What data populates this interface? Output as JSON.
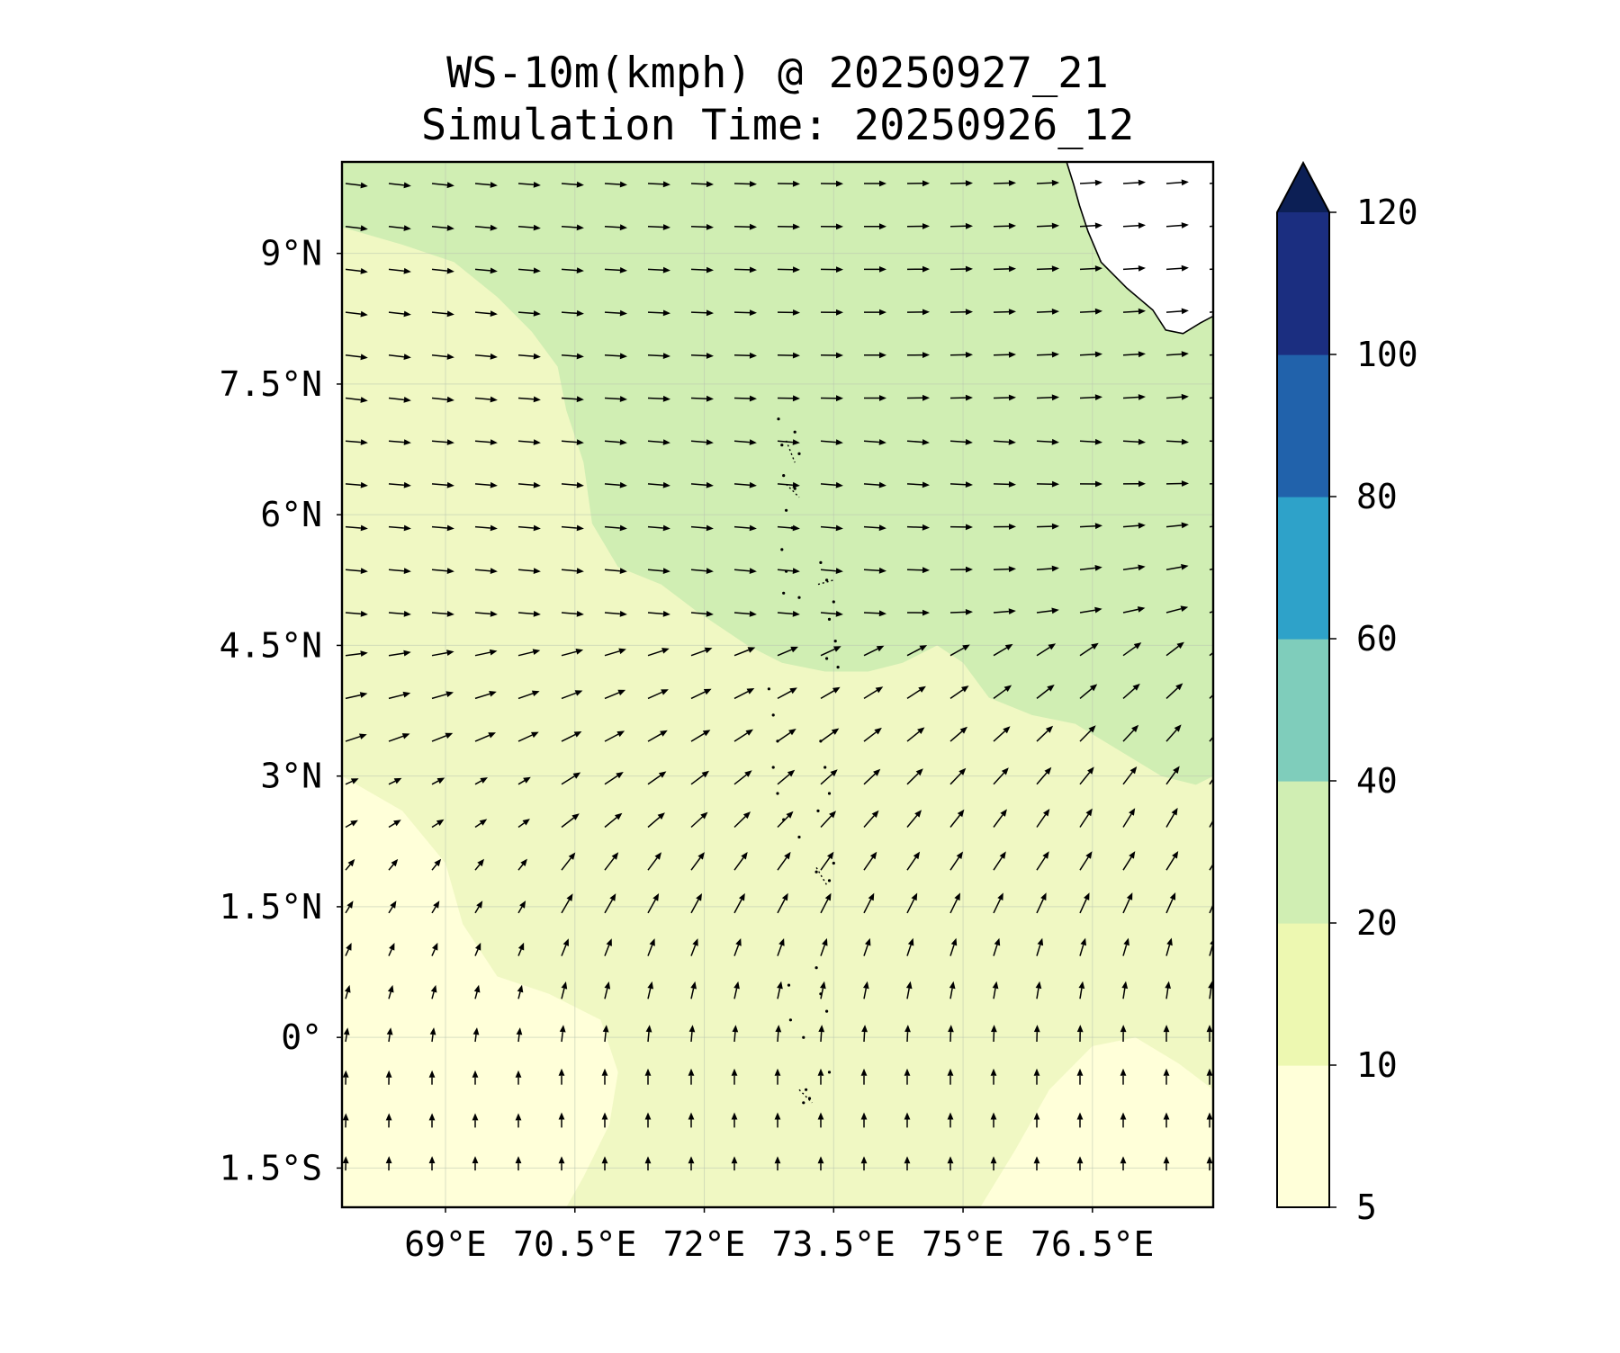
{
  "title": {
    "line1": "WS-10m(kmph) @ 20250927_21",
    "line2": "Simulation Time: 20250926_12"
  },
  "map": {
    "variable": "10 m wind speed",
    "units": "kmph",
    "extent": {
      "lon": [
        67.8,
        77.9
      ],
      "lat": [
        -1.95,
        10.05
      ]
    },
    "lat_ticks": [
      {
        "value": 9,
        "label": "9°N"
      },
      {
        "value": 7.5,
        "label": "7.5°N"
      },
      {
        "value": 6,
        "label": "6°N"
      },
      {
        "value": 4.5,
        "label": "4.5°N"
      },
      {
        "value": 3,
        "label": "3°N"
      },
      {
        "value": 1.5,
        "label": "1.5°N"
      },
      {
        "value": 0,
        "label": "0°"
      },
      {
        "value": -1.5,
        "label": "1.5°S"
      }
    ],
    "lon_ticks": [
      {
        "value": 69,
        "label": "69°E"
      },
      {
        "value": 70.5,
        "label": "70.5°E"
      },
      {
        "value": 72,
        "label": "72°E"
      },
      {
        "value": 73.5,
        "label": "73.5°E"
      },
      {
        "value": 75,
        "label": "75°E"
      },
      {
        "value": 76.5,
        "label": "76.5°E"
      }
    ],
    "gridlines": true,
    "land_fill": "#ffffff",
    "coastline_color": "#000000",
    "arrow_color": "#000000",
    "ocean_base_fill": "#f0f8c3",
    "colorbar": {
      "levels": [
        5,
        10,
        20,
        40,
        60,
        80,
        100,
        120
      ],
      "tick_labels": [
        "5",
        "10",
        "20",
        "40",
        "60",
        "80",
        "100",
        "120"
      ],
      "colors": [
        "#ffffd9",
        "#edf8b1",
        "#d0eeb3",
        "#7fcdbb",
        "#2ea2c9",
        "#2162ab",
        "#1b2e80"
      ],
      "extend": "max",
      "extend_color": "#0c1f55"
    }
  }
}
